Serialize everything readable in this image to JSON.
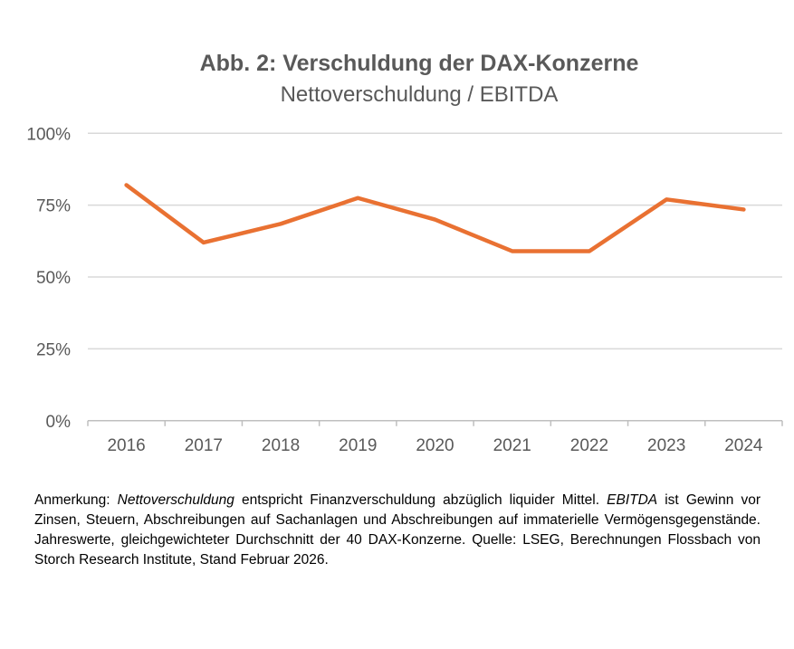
{
  "chart_data": {
    "type": "line",
    "title": "Abb. 2: Verschuldung der DAX-Konzerne",
    "subtitle": "Nettoverschuldung / EBITDA",
    "categories": [
      "2016",
      "2017",
      "2018",
      "2019",
      "2020",
      "2021",
      "2022",
      "2023",
      "2024"
    ],
    "series": [
      {
        "values": [
          82,
          62,
          68.5,
          77.5,
          70,
          59,
          59,
          77,
          73.5
        ],
        "color": "#E97132"
      }
    ],
    "ylim": [
      0,
      100
    ],
    "yticks": [
      0,
      25,
      50,
      75,
      100
    ],
    "ytick_labels": [
      "0%",
      "25%",
      "50%",
      "75%",
      "100%"
    ],
    "grid": true,
    "legend": "none"
  },
  "note": {
    "p1": "Anmerkung: ",
    "term1": "Nettoverschuldung",
    "p2": " entspricht Finanzverschuldung abzüglich liquider Mittel. ",
    "term2": "EBITDA",
    "p3": " ist Gewinn vor Zinsen, Steuern, Abschreibungen auf Sachanlagen und Abschreibungen auf immaterielle Vermögensgegenstände. Jahreswerte, gleichgewichteter Durchschnitt der 40 DAX-Konzerne. Quelle: LSEG, Berechnungen Flossbach von Storch Research Institute, Stand Februar 2026."
  }
}
